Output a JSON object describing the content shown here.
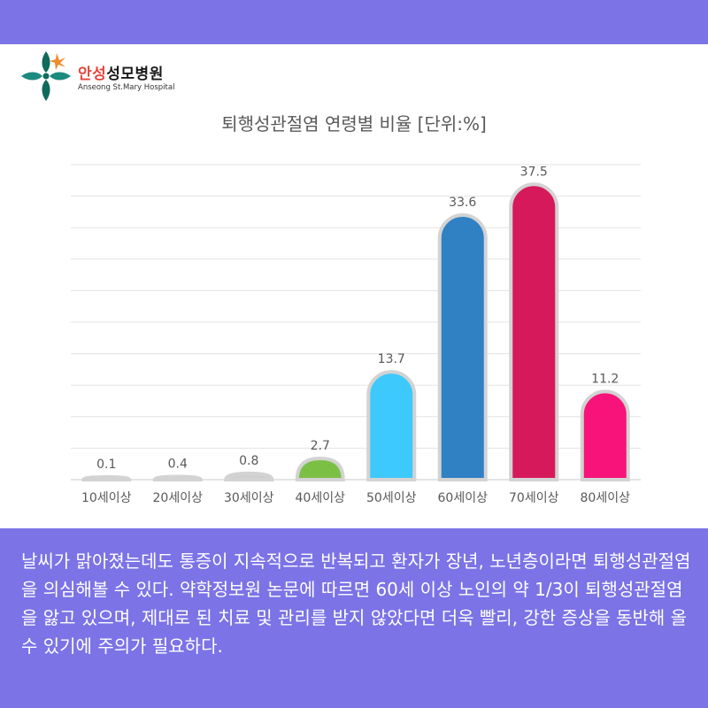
{
  "brand": {
    "name_prefix": "안성",
    "name_suffix": "성모병원",
    "subtitle": "Anseong St.Mary Hospital",
    "colors": {
      "green": "#0f6b5a",
      "teal": "#1d8a7f",
      "orange": "#f08a2a",
      "band": "#7b73e6"
    }
  },
  "chart_data": {
    "type": "bar",
    "title": "퇴행성관절염 연령별 비율 [단위:%]",
    "xlabel": "",
    "ylabel": "",
    "ylim": [
      0,
      40
    ],
    "grid": true,
    "categories": [
      "10세이상",
      "20세이상",
      "30세이상",
      "40세이상",
      "50세이상",
      "60세이상",
      "70세이상",
      "80세이상"
    ],
    "values": [
      0.1,
      0.4,
      0.8,
      2.7,
      13.7,
      33.6,
      37.5,
      11.2
    ],
    "value_labels": [
      "0.1",
      "0.4",
      "0.8",
      "2.7",
      "13.7",
      "33.6",
      "37.5",
      "11.2"
    ],
    "colors": [
      "#cfcfcf",
      "#cfcfcf",
      "#cfcfcf",
      "#7cbf45",
      "#3ec9fc",
      "#2f81c3",
      "#d6195a",
      "#f7137a"
    ]
  },
  "paragraph": "날씨가 맑아졌는데도 통증이 지속적으로 반복되고 환자가 장년, 노년층이라면 퇴행성관절염을 의심해볼 수 있다. 약학정보원 논문에 따르면 60세 이상 노인의 약 1/3이 퇴행성관절염을 앓고 있으며, 제대로 된 치료 및 관리를 받지 않았다면 더욱 빨리, 강한 증상을 동반해 올 수 있기에 주의가 필요하다."
}
